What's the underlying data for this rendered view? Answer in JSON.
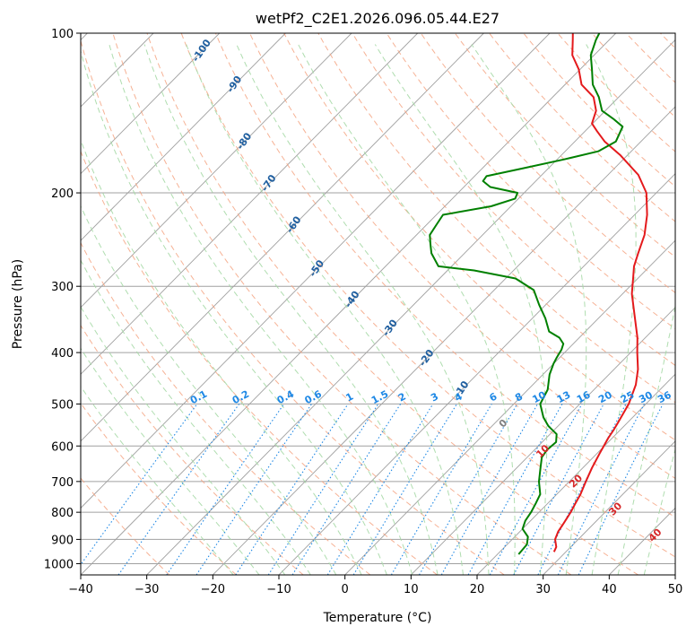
{
  "chart_data": {
    "type": "line",
    "subtype": "skew-t log-p",
    "title": "wetPf2_C2E1.2026.096.05.44.E27",
    "xlabel": "Temperature (°C)",
    "ylabel": "Pressure (hPa)",
    "xlim": [
      -40,
      50
    ],
    "ylim": [
      1050,
      100
    ],
    "x_ticks": [
      -40,
      -30,
      -20,
      -10,
      0,
      10,
      20,
      30,
      40,
      50
    ],
    "x_tick_labels": [
      "−40",
      "−30",
      "−20",
      "−10",
      "0",
      "10",
      "20",
      "30",
      "40",
      "50"
    ],
    "y_ticks": [
      1000,
      900,
      800,
      700,
      600,
      500,
      400,
      300,
      200,
      100
    ],
    "y_tick_labels": [
      "1000",
      "900",
      "800",
      "700",
      "600",
      "500",
      "400",
      "300",
      "200",
      "100"
    ],
    "colors": {
      "temperature": "#e41a1c",
      "dewpoint": "#008000",
      "isotherm": "#a0a0a0",
      "dry_adiabat": "#f4a582",
      "moist_adiabat": "#a6d9a6",
      "mixing_ratio": "#1e88e5",
      "isotherm_label": "#1f5fa0",
      "moist_label": "#d62728",
      "zero_label": "#808080"
    },
    "series": [
      {
        "name": "Temperature",
        "points": [
          [
            28.2,
            950
          ],
          [
            27.8,
            930
          ],
          [
            26.5,
            900
          ],
          [
            25.8,
            870
          ],
          [
            25.4,
            840
          ],
          [
            24.8,
            800
          ],
          [
            24.2,
            770
          ],
          [
            23.6,
            740
          ],
          [
            22.5,
            700
          ],
          [
            21.4,
            660
          ],
          [
            20.4,
            620
          ],
          [
            19.4,
            580
          ],
          [
            19.0,
            560
          ],
          [
            18.5,
            540
          ],
          [
            17.4,
            500
          ],
          [
            15.6,
            460
          ],
          [
            13.6,
            430
          ],
          [
            11.0,
            400
          ],
          [
            8.8,
            375
          ],
          [
            5.0,
            340
          ],
          [
            1.4,
            310
          ],
          [
            -0.7,
            290
          ],
          [
            -2.4,
            275
          ],
          [
            -3.7,
            260
          ],
          [
            -5.5,
            240
          ],
          [
            -8.1,
            220
          ],
          [
            -11.5,
            200
          ],
          [
            -15.4,
            185
          ],
          [
            -21.0,
            170
          ],
          [
            -25.5,
            160
          ],
          [
            -28.2,
            153
          ],
          [
            -30.1,
            148
          ],
          [
            -31.4,
            140
          ],
          [
            -33.8,
            132
          ],
          [
            -37.5,
            125
          ],
          [
            -40.2,
            117
          ],
          [
            -43.3,
            110
          ],
          [
            -45.5,
            103
          ],
          [
            -46.5,
            100
          ]
        ]
      },
      {
        "name": "Dewpoint",
        "points": [
          [
            23.2,
            960
          ],
          [
            23.0,
            920
          ],
          [
            22.0,
            890
          ],
          [
            20.0,
            860
          ],
          [
            19.2,
            830
          ],
          [
            18.8,
            800
          ],
          [
            18.2,
            770
          ],
          [
            17.5,
            740
          ],
          [
            15.4,
            700
          ],
          [
            13.6,
            660
          ],
          [
            12.2,
            630
          ],
          [
            11.9,
            610
          ],
          [
            12.1,
            590
          ],
          [
            11.0,
            570
          ],
          [
            8.5,
            550
          ],
          [
            6.5,
            530
          ],
          [
            4.0,
            500
          ],
          [
            3.0,
            470
          ],
          [
            1.0,
            440
          ],
          [
            0.0,
            420
          ],
          [
            -0.4,
            410
          ],
          [
            -0.9,
            395
          ],
          [
            -1.5,
            385
          ],
          [
            -3.0,
            375
          ],
          [
            -5.5,
            365
          ],
          [
            -8.0,
            345
          ],
          [
            -11.0,
            325
          ],
          [
            -14.0,
            305
          ],
          [
            -18.5,
            290
          ],
          [
            -26.0,
            280
          ],
          [
            -32.0,
            275
          ],
          [
            -35.0,
            260
          ],
          [
            -36.5,
            250
          ],
          [
            -38.0,
            240
          ],
          [
            -38.5,
            230
          ],
          [
            -39.0,
            220
          ],
          [
            -33.0,
            212
          ],
          [
            -30.5,
            205
          ],
          [
            -31.0,
            200
          ],
          [
            -36.0,
            195
          ],
          [
            -38.0,
            190
          ],
          [
            -38.2,
            186
          ],
          [
            -34.0,
            180
          ],
          [
            -29.0,
            173
          ],
          [
            -25.0,
            167
          ],
          [
            -23.8,
            160
          ],
          [
            -25.0,
            150
          ],
          [
            -27.6,
            145
          ],
          [
            -30.5,
            140
          ],
          [
            -33.0,
            132
          ],
          [
            -35.8,
            125
          ],
          [
            -38.2,
            117
          ],
          [
            -40.5,
            110
          ],
          [
            -42.0,
            103
          ],
          [
            -42.5,
            100
          ]
        ]
      }
    ],
    "isotherm_labels": [
      {
        "t": -100,
        "p": 108,
        "text": "-100"
      },
      {
        "t": -90,
        "p": 125,
        "text": "-90"
      },
      {
        "t": -80,
        "p": 160,
        "text": "-80"
      },
      {
        "t": -70,
        "p": 192,
        "text": "-70"
      },
      {
        "t": -60,
        "p": 230,
        "text": "-60"
      },
      {
        "t": -50,
        "p": 278,
        "text": "-50"
      },
      {
        "t": -40,
        "p": 318,
        "text": "-40"
      },
      {
        "t": -30,
        "p": 360,
        "text": "-30"
      },
      {
        "t": -20,
        "p": 410,
        "text": "-20"
      },
      {
        "t": -10,
        "p": 470,
        "text": "-10"
      }
    ],
    "mixing_ratio_values": [
      0.1,
      0.2,
      0.4,
      0.6,
      1,
      1.5,
      2,
      3,
      4,
      6,
      8,
      10,
      13,
      16,
      20,
      25,
      30,
      36
    ],
    "mixing_ratio_labels": [
      "0.1",
      "0.2",
      "0.4",
      "0.6",
      "1",
      "1.5",
      "2",
      "3",
      "4",
      "6",
      "8",
      "10",
      "13",
      "16",
      "20",
      "25",
      "30",
      "36"
    ],
    "mixing_ratio_label_pressure": 500,
    "moist_adiabat_labels": [
      {
        "theta_w": 0,
        "text": "0",
        "t": 24,
        "p": 545
      },
      {
        "theta_w": 10,
        "text": "10",
        "t": 30,
        "p": 615
      },
      {
        "theta_w": 20,
        "text": "20",
        "t": 35,
        "p": 700
      },
      {
        "theta_w": 30,
        "text": "30",
        "t": 41,
        "p": 790
      },
      {
        "theta_w": 40,
        "text": "40",
        "t": 47,
        "p": 885
      }
    ]
  }
}
